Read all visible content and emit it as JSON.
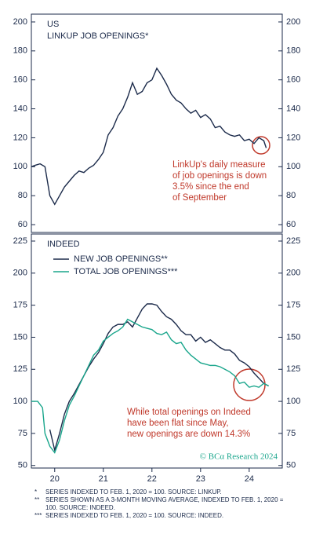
{
  "chart_data": [
    {
      "type": "line",
      "label": "US",
      "title": "LINKUP JOB OPENINGS*",
      "xlim": [
        19.52,
        24.68
      ],
      "ylim": [
        54.6,
        205.4
      ],
      "yticks": [
        60,
        80,
        100,
        120,
        140,
        160,
        180,
        200
      ],
      "annotation": [
        "LinkUp's daily measure",
        "of job openings is down",
        "3.5% since the end",
        "of September"
      ],
      "series": [
        {
          "color": "#1b2a4a",
          "x": [
            19.52,
            19.6,
            19.7,
            19.8,
            19.9,
            20.0,
            20.1,
            20.2,
            20.3,
            20.4,
            20.5,
            20.6,
            20.7,
            20.8,
            20.9,
            21.0,
            21.1,
            21.2,
            21.3,
            21.4,
            21.5,
            21.6,
            21.7,
            21.8,
            21.9,
            22.0,
            22.1,
            22.2,
            22.3,
            22.4,
            22.5,
            22.6,
            22.7,
            22.8,
            22.9,
            23.0,
            23.1,
            23.2,
            23.3,
            23.4,
            23.5,
            23.6,
            23.7,
            23.8,
            23.9,
            24.0,
            24.1,
            24.2,
            24.3,
            24.35
          ],
          "values": [
            100,
            101,
            102,
            100,
            80,
            74,
            80,
            86,
            90,
            94,
            97,
            96,
            99,
            101,
            105,
            110,
            122,
            127,
            135,
            140,
            148,
            158,
            150,
            152,
            158,
            160,
            168,
            163,
            157,
            150,
            146,
            144,
            140,
            137,
            139,
            134,
            136,
            133,
            127,
            128,
            124,
            122,
            121,
            122,
            118,
            119,
            116,
            120,
            118,
            113
          ]
        }
      ]
    },
    {
      "type": "line",
      "label": "INDEED",
      "xlim": [
        19.52,
        24.68
      ],
      "ylim": [
        48,
        230.5
      ],
      "yticks": [
        50,
        75,
        100,
        125,
        150,
        175,
        200,
        225
      ],
      "xticks": [
        20,
        21,
        22,
        23,
        24
      ],
      "annotation": [
        "While total openings on Indeed",
        "have been flat since May,",
        "new openings are down 14.3%"
      ],
      "credit": "© BCα Research 2024",
      "series": [
        {
          "name": "NEW JOB OPENINGS**",
          "color": "#1b2a4a",
          "x": [
            19.9,
            20.0,
            20.1,
            20.2,
            20.3,
            20.4,
            20.5,
            20.6,
            20.7,
            20.8,
            20.9,
            21.0,
            21.1,
            21.2,
            21.3,
            21.4,
            21.5,
            21.6,
            21.7,
            21.8,
            21.9,
            22.0,
            22.1,
            22.2,
            22.3,
            22.4,
            22.5,
            22.6,
            22.7,
            22.8,
            22.9,
            23.0,
            23.1,
            23.2,
            23.3,
            23.4,
            23.5,
            23.6,
            23.7,
            23.8,
            23.9,
            24.0,
            24.1,
            24.2,
            24.3,
            24.4
          ],
          "values": [
            78,
            62,
            75,
            90,
            100,
            106,
            113,
            120,
            127,
            133,
            138,
            145,
            153,
            158,
            160,
            160,
            162,
            158,
            165,
            172,
            176,
            176,
            175,
            170,
            166,
            164,
            160,
            155,
            152,
            152,
            147,
            150,
            146,
            148,
            145,
            142,
            140,
            140,
            137,
            132,
            130,
            127,
            122,
            118,
            114,
            112
          ]
        },
        {
          "name": "TOTAL JOB OPENINGS***",
          "color": "#1aa68c",
          "x": [
            19.52,
            19.65,
            19.75,
            19.8,
            19.9,
            20.0,
            20.1,
            20.2,
            20.3,
            20.4,
            20.5,
            20.6,
            20.7,
            20.8,
            20.9,
            21.0,
            21.1,
            21.2,
            21.3,
            21.4,
            21.5,
            21.6,
            21.7,
            21.8,
            21.9,
            22.0,
            22.1,
            22.2,
            22.3,
            22.4,
            22.5,
            22.6,
            22.7,
            22.8,
            22.9,
            23.0,
            23.1,
            23.2,
            23.3,
            23.4,
            23.5,
            23.6,
            23.7,
            23.8,
            23.9,
            24.0,
            24.1,
            24.2,
            24.3,
            24.4
          ],
          "values": [
            100,
            100,
            95,
            75,
            65,
            60,
            70,
            85,
            97,
            104,
            112,
            120,
            128,
            136,
            140,
            147,
            150,
            153,
            155,
            158,
            164,
            162,
            160,
            158,
            157,
            156,
            153,
            152,
            154,
            148,
            145,
            146,
            140,
            136,
            133,
            130,
            129,
            128,
            128,
            127,
            125,
            123,
            120,
            114,
            115,
            111,
            112,
            111,
            114,
            112
          ]
        }
      ]
    }
  ],
  "footnotes": [
    {
      "marker": "*",
      "text": "SERIES INDEXED TO FEB. 1, 2020 = 100. SOURCE: LINKUP."
    },
    {
      "marker": "**",
      "text": "SERIES SHOWN AS A 3-MONTH MOVING AVERAGE, INDEXED TO FEB. 1, 2020 = 100. SOURCE: INDEED."
    },
    {
      "marker": "***",
      "text": "SERIES INDEXED TO FEB. 1, 2020 = 100. SOURCE: INDEED."
    }
  ]
}
